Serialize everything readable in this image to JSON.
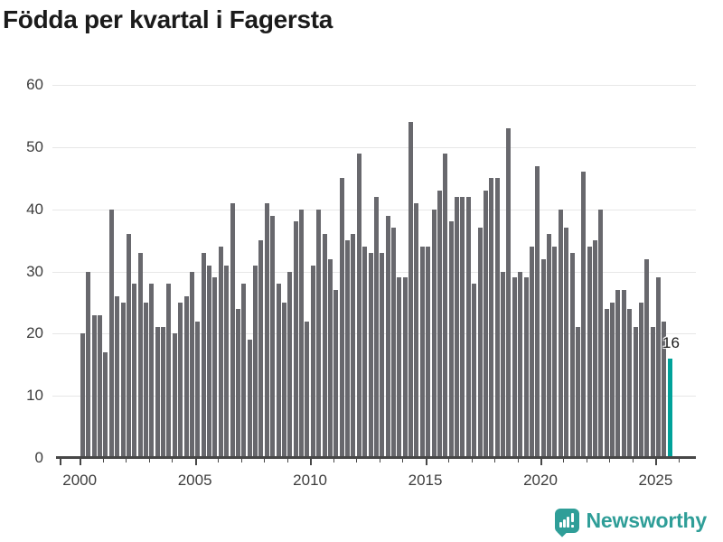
{
  "title": "Födda per kvartal i Fagersta",
  "chart_data": {
    "type": "bar",
    "frequency": "quarterly",
    "x_start": "2000-Q1",
    "x_end": "2025-Q3",
    "values": [
      20,
      30,
      23,
      23,
      17,
      40,
      26,
      25,
      36,
      28,
      33,
      25,
      28,
      21,
      21,
      28,
      20,
      25,
      26,
      30,
      22,
      33,
      31,
      29,
      34,
      31,
      41,
      24,
      28,
      19,
      31,
      35,
      41,
      39,
      28,
      25,
      30,
      38,
      40,
      22,
      31,
      40,
      36,
      32,
      27,
      45,
      35,
      36,
      49,
      34,
      33,
      42,
      33,
      39,
      37,
      29,
      29,
      54,
      41,
      34,
      34,
      40,
      43,
      49,
      38,
      42,
      42,
      42,
      28,
      37,
      43,
      45,
      45,
      30,
      53,
      29,
      30,
      29,
      34,
      47,
      32,
      36,
      34,
      40,
      37,
      33,
      21,
      46,
      34,
      35,
      40,
      24,
      25,
      27,
      27,
      24,
      21,
      25,
      32,
      21,
      29,
      22,
      16
    ],
    "highlight": {
      "index": 102,
      "quarter": "2025-Q3",
      "value": 16,
      "label": "16"
    },
    "ylim": [
      0,
      60
    ],
    "y_ticks": [
      0,
      10,
      20,
      30,
      40,
      50,
      60
    ],
    "x_tick_years_labeled": [
      2000,
      2005,
      2010,
      2015,
      2020,
      2025
    ],
    "x_minor_tick_years": [
      2000,
      2026
    ],
    "grid": "horizontal",
    "legend": "none",
    "colors": {
      "bar": "#68686d",
      "highlight": "#00a29a",
      "axis": "#474747",
      "grid": "#e7e7e7"
    }
  },
  "footer": {
    "brand": "Newsworthy",
    "brand_color": "#2f9e98",
    "logo_icon": "bar-chart-speech-bubble-icon"
  }
}
